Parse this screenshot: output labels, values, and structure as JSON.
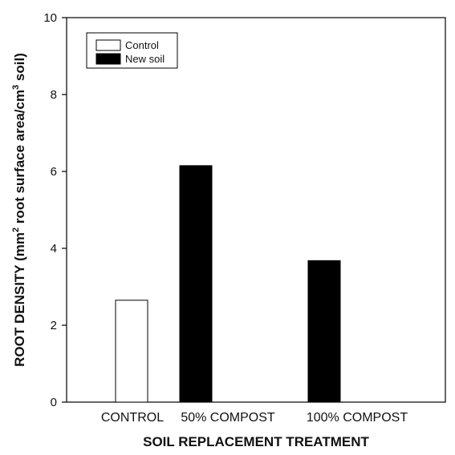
{
  "chart_data": {
    "type": "bar",
    "categories": [
      "CONTROL",
      "50% COMPOST",
      "100% COMPOST"
    ],
    "series": [
      {
        "name": "Control",
        "values": [
          2.65,
          null,
          null
        ],
        "color": "#ffffff"
      },
      {
        "name": "New soil",
        "values": [
          null,
          6.15,
          3.68
        ],
        "color": "#000000"
      }
    ],
    "xlabel": "SOIL REPLACEMENT TREATMENT",
    "ylabel": {
      "prefix": "ROOT DENSITY (mm",
      "sup1": "2",
      "middle": " root surface area/cm",
      "sup2": "3",
      "suffix": " soil)"
    },
    "ylim": [
      0,
      10
    ],
    "yticks": [
      "0",
      "2",
      "4",
      "6",
      "8",
      "10"
    ],
    "grid": false,
    "legend_position": "top-left"
  }
}
